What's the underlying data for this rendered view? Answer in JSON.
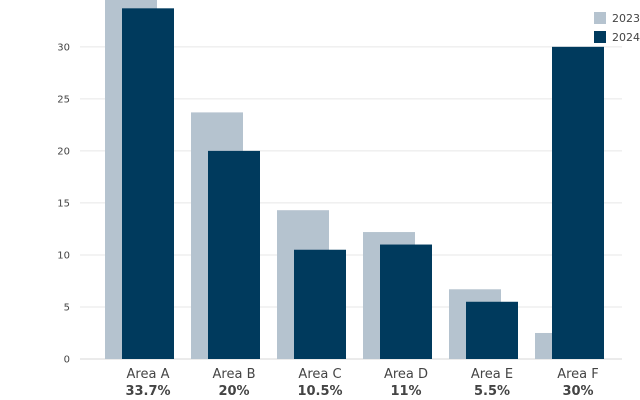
{
  "chart_data": {
    "type": "bar",
    "categories": [
      "Area A",
      "Area B",
      "Area C",
      "Area D",
      "Area E",
      "Area F"
    ],
    "category_sublabels": [
      "33.7%",
      "20%",
      "10.5%",
      "11%",
      "5.5%",
      "30%"
    ],
    "series": [
      {
        "name": "2023",
        "values": [
          35.0,
          23.7,
          14.3,
          12.2,
          6.7,
          2.5
        ],
        "color": "#b5c3cf"
      },
      {
        "name": "2024",
        "values": [
          33.7,
          20.0,
          10.5,
          11.0,
          5.5,
          30.0
        ],
        "color": "#003a5d"
      }
    ],
    "y_ticks": [
      0,
      5,
      10,
      15,
      20,
      25,
      30
    ],
    "ylim": [
      0,
      34.5
    ],
    "grid": true,
    "legend_position": "top-right",
    "title": "",
    "xlabel": "",
    "ylabel": ""
  }
}
